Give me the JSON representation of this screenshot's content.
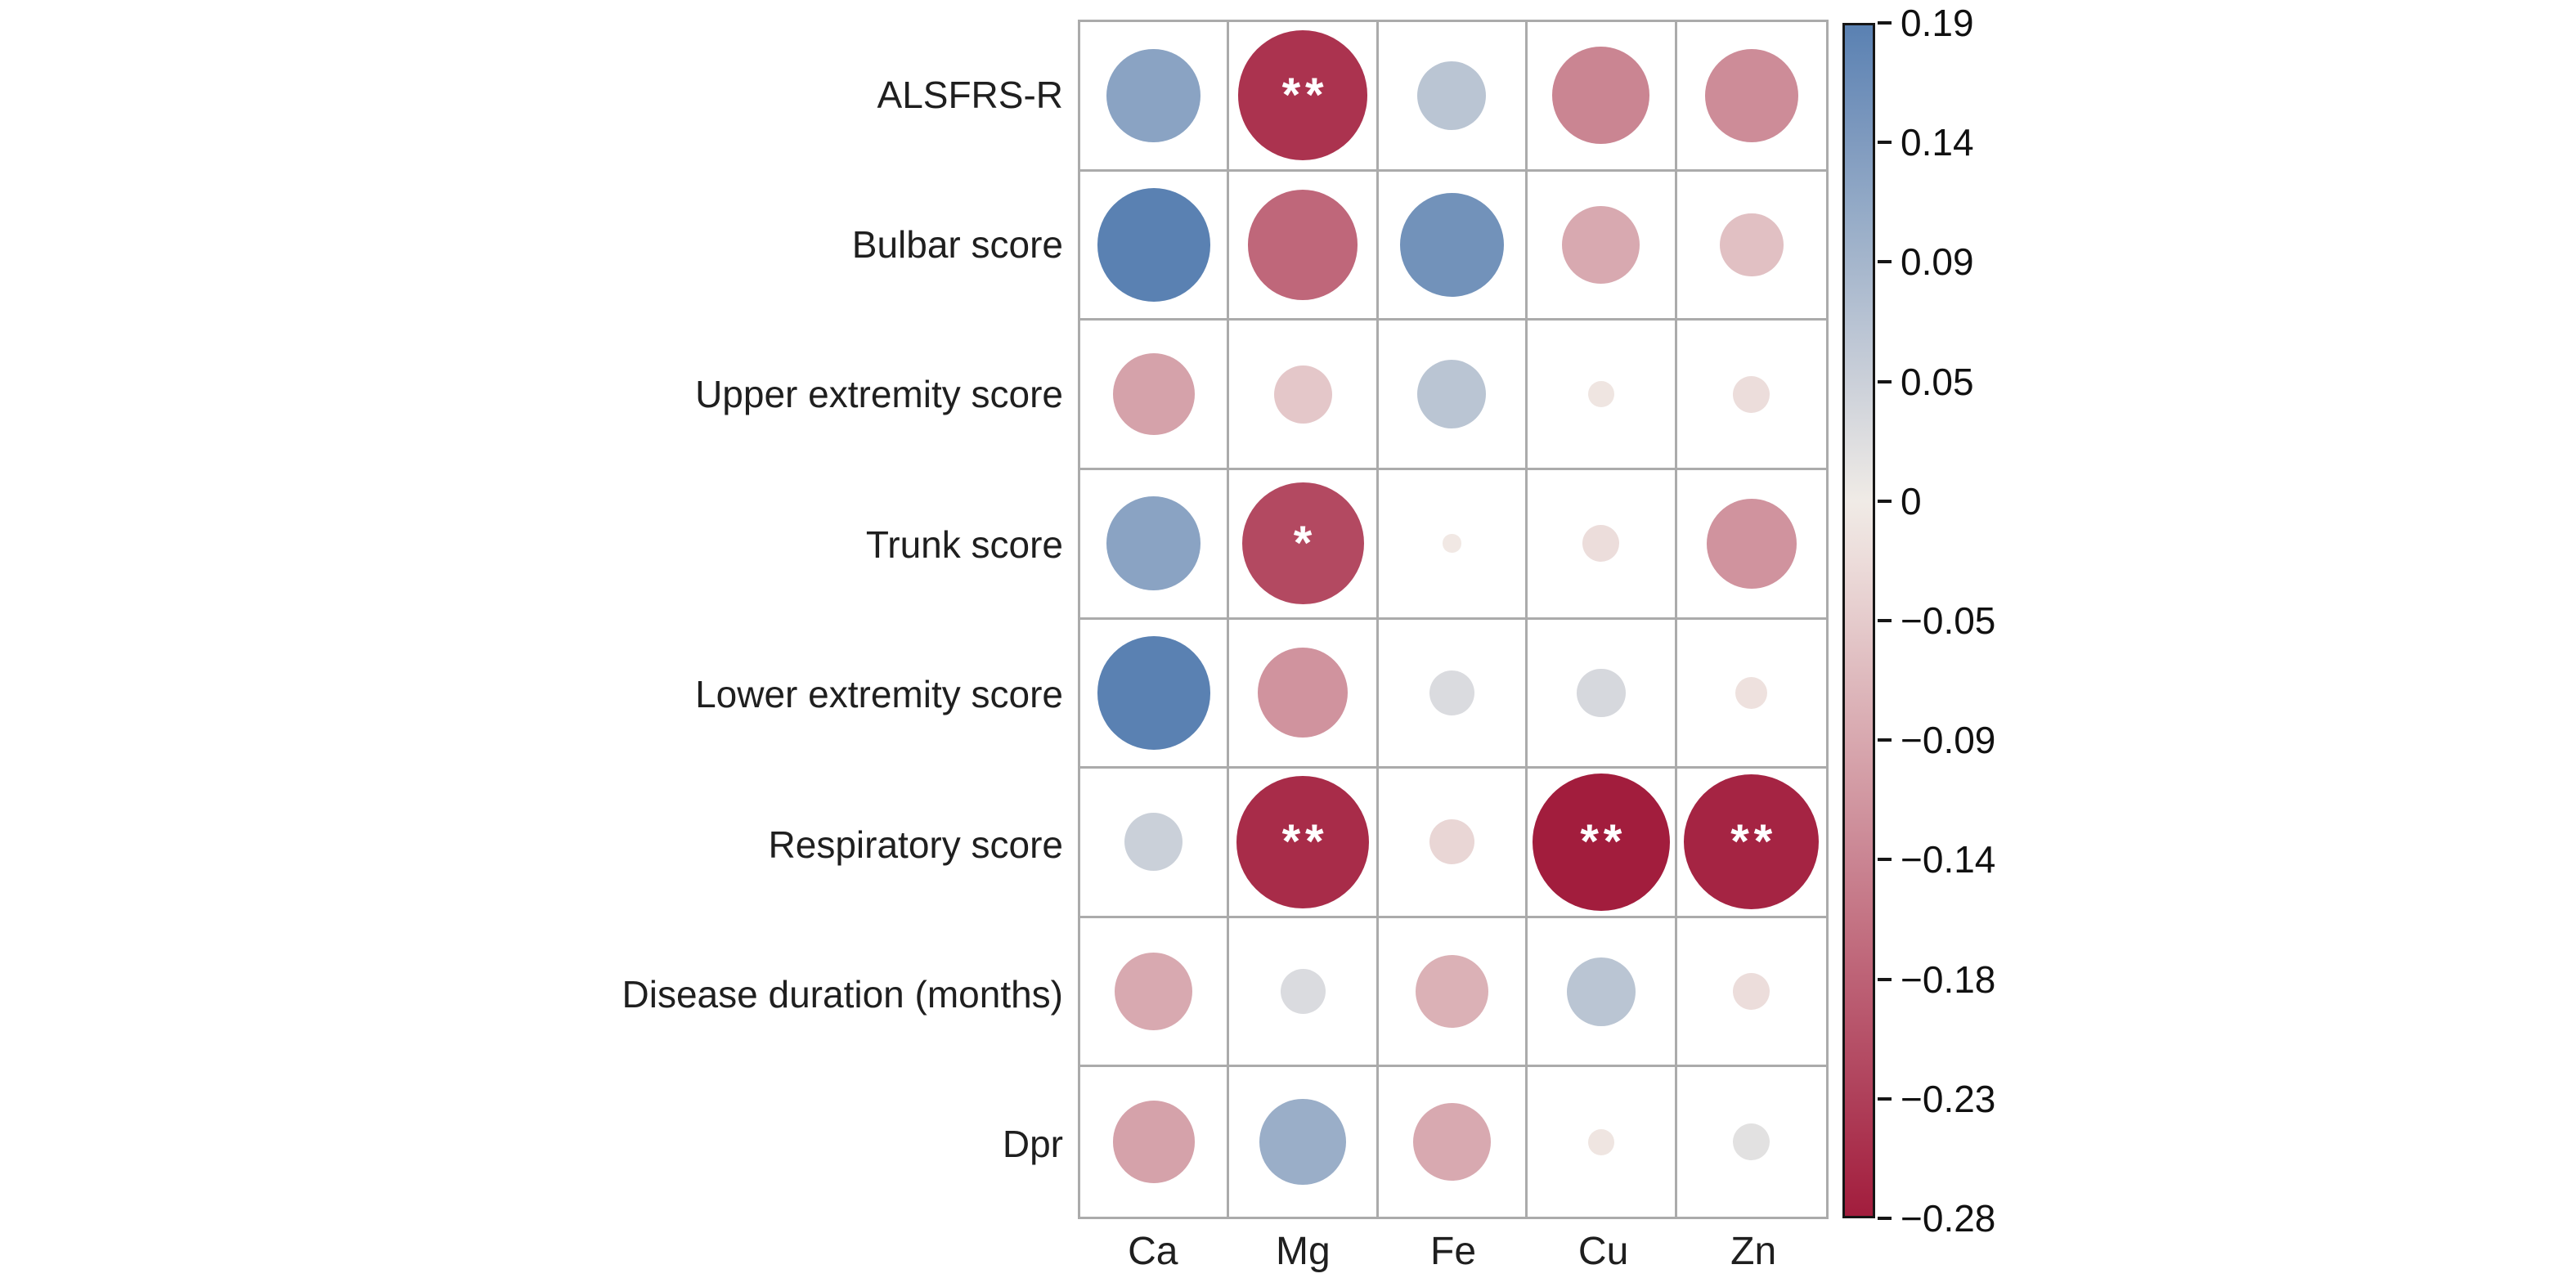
{
  "chart_data": {
    "type": "heatmap",
    "variant": "correlation-bubble-matrix (correlogram, circle size = |r|, color = r)",
    "columns": [
      "Ca",
      "Mg",
      "Fe",
      "Cu",
      "Zn"
    ],
    "rows": [
      "ALSFRS-R",
      "Bulbar score",
      "Upper extremity score",
      "Trunk score",
      "Lower extremity score",
      "Respiratory score",
      "Disease duration (months)",
      "Dpr"
    ],
    "values": [
      [
        0.13,
        -0.25,
        0.07,
        -0.14,
        -0.13
      ],
      [
        0.19,
        -0.18,
        0.16,
        -0.09,
        -0.06
      ],
      [
        -0.1,
        -0.05,
        0.07,
        -0.01,
        -0.02
      ],
      [
        0.13,
        -0.22,
        -0.005,
        -0.02,
        -0.12
      ],
      [
        0.19,
        -0.12,
        0.03,
        0.035,
        -0.015
      ],
      [
        0.05,
        -0.26,
        -0.03,
        -0.28,
        -0.27
      ],
      [
        -0.09,
        0.03,
        -0.08,
        0.07,
        -0.02
      ],
      [
        -0.1,
        0.11,
        -0.09,
        -0.01,
        0.02
      ]
    ],
    "significance": [
      [
        "",
        "**",
        "",
        "",
        ""
      ],
      [
        "",
        "",
        "",
        "",
        ""
      ],
      [
        "",
        "",
        "",
        "",
        ""
      ],
      [
        "",
        "*",
        "",
        "",
        ""
      ],
      [
        "",
        "",
        "",
        "",
        ""
      ],
      [
        "",
        "**",
        "",
        "**",
        "**"
      ],
      [
        "",
        "",
        "",
        "",
        ""
      ],
      [
        "",
        "",
        "",
        "",
        ""
      ]
    ],
    "colorbar": {
      "min": -0.28,
      "max": 0.19,
      "tick_labels": [
        "0.19",
        "0.14",
        "0.09",
        "0.05",
        "0",
        "−0.05",
        "−0.09",
        "−0.14",
        "−0.18",
        "−0.23",
        "−0.28"
      ],
      "tick_values": [
        0.19,
        0.14,
        0.09,
        0.05,
        0,
        -0.05,
        -0.09,
        -0.14,
        -0.18,
        -0.23,
        -0.28
      ],
      "position": "right"
    },
    "colors": {
      "positive_max": "#5a81b2",
      "zero": "#f2ece7",
      "negative_max": "#a21d3d",
      "grid_line": "#ababab",
      "colorbar_border": "#161616",
      "significance_marker": "#ffffff",
      "label_text": "#1f1f1f"
    },
    "layout": {
      "grid": "8 rows x 5 columns, light gray gridlines, circles centered in cells",
      "max_abs_r": 0.28,
      "legend_position": "right"
    }
  }
}
